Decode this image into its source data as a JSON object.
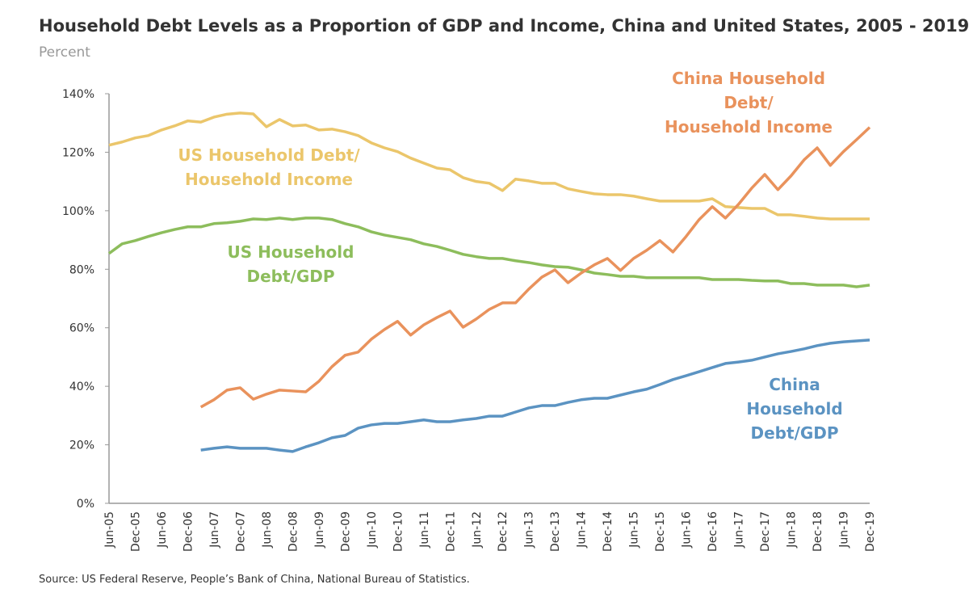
{
  "chart_data": {
    "type": "line",
    "title": "Household Debt Levels as a Proportion of GDP and Income, China and United States, 2005 - 2019",
    "subtitle": "Percent",
    "source": "Source: US Federal Reserve, People’s Bank of China, National Bureau of Statistics.",
    "categories": [
      "Jun-05",
      null,
      "Dec-05",
      null,
      "Jun-06",
      null,
      "Dec-06",
      null,
      "Jun-07",
      null,
      "Dec-07",
      null,
      "Jun-08",
      null,
      "Dec-08",
      null,
      "Jun-09",
      null,
      "Dec-09",
      null,
      "Jun-10",
      null,
      "Dec-10",
      null,
      "Jun-11",
      null,
      "Dec-11",
      null,
      "Jun-12",
      null,
      "Dec-12",
      null,
      "Jun-13",
      null,
      "Dec-13",
      null,
      "Jun-14",
      null,
      "Dec-14",
      null,
      "Jun-15",
      null,
      "Dec-15",
      null,
      "Jun-16",
      null,
      "Dec-16",
      null,
      "Jun-17",
      null,
      "Dec-17",
      null,
      "Jun-18",
      null,
      "Dec-18",
      null,
      "Jun-19",
      null,
      "Dec-19"
    ],
    "ylim": [
      0,
      140
    ],
    "yticks": [
      {
        "value": 0,
        "label": "0%"
      },
      {
        "value": 20,
        "label": "20%"
      },
      {
        "value": 40,
        "label": "40%"
      },
      {
        "value": 60,
        "label": "60%"
      },
      {
        "value": 80,
        "label": "80%"
      },
      {
        "value": 100,
        "label": "100%"
      },
      {
        "value": 120,
        "label": "120%"
      },
      {
        "value": 140,
        "label": "140%"
      }
    ],
    "series": [
      {
        "name": "US Household Debt/\nHousehold Income",
        "color": "#ebc66b",
        "values": [
          122.4,
          123.5,
          124.9,
          125.7,
          127.6,
          129,
          130.7,
          130.3,
          132,
          133,
          133.4,
          133.1,
          128.7,
          131.2,
          129,
          129.3,
          127.6,
          127.9,
          127,
          125.7,
          123.2,
          121.5,
          120.2,
          118,
          116.3,
          114.6,
          114,
          111.3,
          110,
          109.4,
          106.9,
          110.8,
          110.2,
          109.4,
          109.4,
          107.5,
          106.6,
          105.8,
          105.5,
          105.5,
          105,
          104.1,
          103.3,
          103.3,
          103.3,
          103.3,
          104.1,
          101.4,
          101.1,
          100.8,
          100.8,
          98.6,
          98.6,
          98.1,
          97.5,
          97.2,
          97.2,
          97.2,
          97.2
        ]
      },
      {
        "name": "US Household\nDebt/GDP",
        "color": "#8dbd5c",
        "values": [
          85.4,
          88.7,
          89.8,
          91.2,
          92.5,
          93.6,
          94.5,
          94.5,
          95.6,
          95.9,
          96.4,
          97.2,
          97,
          97.5,
          97,
          97.5,
          97.5,
          97,
          95.6,
          94.5,
          92.8,
          91.7,
          90.9,
          90.1,
          88.7,
          87.8,
          86.5,
          85.1,
          84.3,
          83.7,
          83.7,
          82.9,
          82.3,
          81.5,
          80.9,
          80.7,
          79.8,
          78.7,
          78.2,
          77.6,
          77.6,
          77.1,
          77.1,
          77.1,
          77.1,
          77.1,
          76.5,
          76.5,
          76.5,
          76.2,
          76,
          76,
          75.1,
          75.1,
          74.6,
          74.6,
          74.6,
          74,
          74.6
        ]
      },
      {
        "name": "China Household Debt/\nHousehold Income",
        "color": "#e9925c",
        "values": [
          null,
          null,
          null,
          null,
          null,
          null,
          null,
          32.9,
          35.4,
          38.7,
          39.5,
          35.6,
          37.3,
          38.7,
          38.4,
          38.1,
          41.7,
          46.7,
          50.6,
          51.7,
          56.1,
          59.4,
          62.2,
          57.5,
          61,
          63.5,
          65.7,
          60.2,
          63,
          66.3,
          68.5,
          68.5,
          73.2,
          77.3,
          79.8,
          75.4,
          78.7,
          81.5,
          83.7,
          79.6,
          83.7,
          86.5,
          89.8,
          85.9,
          91.2,
          97,
          101.4,
          97.5,
          102.2,
          107.7,
          112.4,
          107.2,
          111.9,
          117.4,
          121.5,
          115.5,
          120.2,
          124.3,
          128.5
        ]
      },
      {
        "name": "China Household\nDebt/GDP",
        "color": "#5b93c2",
        "values": [
          null,
          null,
          null,
          null,
          null,
          null,
          null,
          18.2,
          18.8,
          19.3,
          18.8,
          18.8,
          18.8,
          18.2,
          17.7,
          19.3,
          20.7,
          22.4,
          23.2,
          25.7,
          26.8,
          27.3,
          27.3,
          27.9,
          28.5,
          27.9,
          27.9,
          28.5,
          29,
          29.8,
          29.8,
          31.2,
          32.6,
          33.4,
          33.4,
          34.5,
          35.4,
          35.9,
          35.9,
          37,
          38.1,
          39,
          40.6,
          42.3,
          43.6,
          45,
          46.4,
          47.8,
          48.3,
          48.9,
          50,
          51.1,
          51.9,
          52.8,
          53.9,
          54.7,
          55.2,
          55.5,
          55.8
        ]
      }
    ]
  }
}
